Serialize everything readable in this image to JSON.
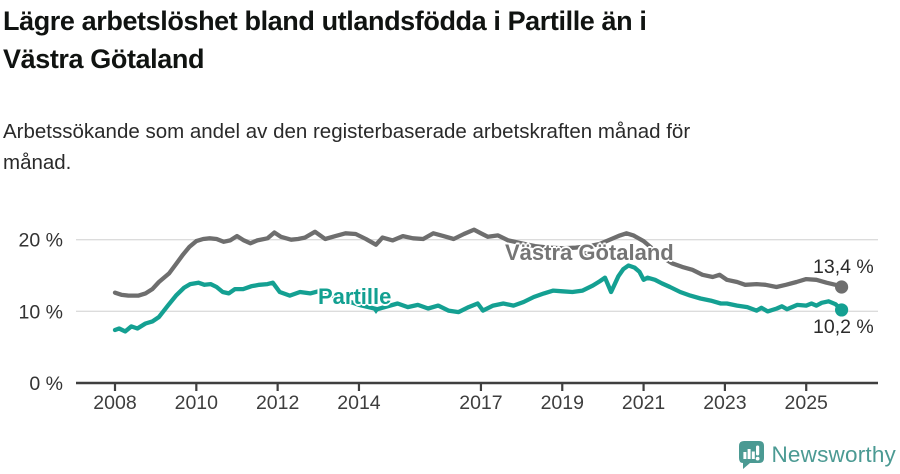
{
  "header": {
    "title_line1": "Lägre arbetslöshet bland utlandsfödda i Partille än i",
    "title_line2": "Västra Götaland",
    "subtitle_line1": "Arbetssökande som andel av den registerbaserade arbetskraften månad för",
    "subtitle_line2": "månad."
  },
  "footer": {
    "brand": "Newsworthy",
    "brand_color": "#4b9a93",
    "logo_icon": "newsworthy-speech-bubble-bar-chart-icon"
  },
  "chart_data": {
    "type": "line",
    "title": "Lägre arbetslöshet bland utlandsfödda i Partille än i Västra Götaland",
    "subtitle": "Arbetssökande som andel av den registerbaserade arbetskraften månad för månad.",
    "unit": "%",
    "grid": true,
    "legend_position": "inline-labels-on-lines",
    "x_axis": {
      "label": "",
      "ticks": [
        2008,
        2010,
        2012,
        2014,
        2017,
        2019,
        2021,
        2023,
        2025
      ],
      "range": [
        2007.05,
        2026.75
      ]
    },
    "y_axis": {
      "label": "",
      "ticks": [
        {
          "value": 0,
          "label": "0 %"
        },
        {
          "value": 10,
          "label": "10 %"
        },
        {
          "value": 20,
          "label": "20 %"
        }
      ],
      "range": [
        0,
        22.2
      ]
    },
    "series": [
      {
        "name": "Västra Götaland",
        "color": "#6e6e6e",
        "end_value": 13.4,
        "end_label": "13,4 %",
        "points": [
          [
            2008.0,
            12.6
          ],
          [
            2008.17,
            12.3
          ],
          [
            2008.33,
            12.2
          ],
          [
            2008.58,
            12.2
          ],
          [
            2008.75,
            12.5
          ],
          [
            2008.92,
            13.1
          ],
          [
            2009.08,
            14.1
          ],
          [
            2009.33,
            15.3
          ],
          [
            2009.5,
            16.6
          ],
          [
            2009.67,
            17.9
          ],
          [
            2009.83,
            19.0
          ],
          [
            2010.0,
            19.8
          ],
          [
            2010.17,
            20.1
          ],
          [
            2010.33,
            20.2
          ],
          [
            2010.5,
            20.1
          ],
          [
            2010.67,
            19.7
          ],
          [
            2010.83,
            19.9
          ],
          [
            2011.0,
            20.5
          ],
          [
            2011.17,
            19.9
          ],
          [
            2011.33,
            19.5
          ],
          [
            2011.5,
            19.9
          ],
          [
            2011.75,
            20.2
          ],
          [
            2011.92,
            21.0
          ],
          [
            2012.08,
            20.4
          ],
          [
            2012.33,
            20.0
          ],
          [
            2012.5,
            20.1
          ],
          [
            2012.67,
            20.3
          ],
          [
            2012.92,
            21.1
          ],
          [
            2013.17,
            20.1
          ],
          [
            2013.42,
            20.5
          ],
          [
            2013.67,
            20.9
          ],
          [
            2013.92,
            20.8
          ],
          [
            2014.17,
            20.1
          ],
          [
            2014.42,
            19.3
          ],
          [
            2014.58,
            20.3
          ],
          [
            2014.83,
            19.9
          ],
          [
            2015.08,
            20.5
          ],
          [
            2015.33,
            20.2
          ],
          [
            2015.58,
            20.1
          ],
          [
            2015.83,
            20.9
          ],
          [
            2016.08,
            20.5
          ],
          [
            2016.33,
            20.1
          ],
          [
            2016.58,
            20.8
          ],
          [
            2016.83,
            21.4
          ],
          [
            2017.0,
            20.9
          ],
          [
            2017.17,
            20.4
          ],
          [
            2017.42,
            20.6
          ],
          [
            2017.67,
            19.9
          ],
          [
            2018.0,
            19.5
          ],
          [
            2018.33,
            19.1
          ],
          [
            2018.67,
            18.9
          ],
          [
            2019.0,
            18.8
          ],
          [
            2019.33,
            18.9
          ],
          [
            2019.67,
            19.1
          ],
          [
            2019.92,
            19.4
          ],
          [
            2020.17,
            20.0
          ],
          [
            2020.42,
            20.6
          ],
          [
            2020.58,
            20.9
          ],
          [
            2020.75,
            20.6
          ],
          [
            2021.0,
            19.8
          ],
          [
            2021.25,
            18.6
          ],
          [
            2021.5,
            17.4
          ],
          [
            2021.7,
            16.7
          ],
          [
            2021.95,
            16.2
          ],
          [
            2022.2,
            15.8
          ],
          [
            2022.45,
            15.1
          ],
          [
            2022.7,
            14.8
          ],
          [
            2022.87,
            15.1
          ],
          [
            2023.05,
            14.4
          ],
          [
            2023.3,
            14.1
          ],
          [
            2023.5,
            13.7
          ],
          [
            2023.78,
            13.8
          ],
          [
            2024.0,
            13.7
          ],
          [
            2024.27,
            13.4
          ],
          [
            2024.5,
            13.7
          ],
          [
            2024.76,
            14.1
          ],
          [
            2025.0,
            14.5
          ],
          [
            2025.25,
            14.4
          ],
          [
            2025.5,
            14.0
          ],
          [
            2025.72,
            13.7
          ],
          [
            2025.87,
            13.4
          ]
        ]
      },
      {
        "name": "Partille",
        "color": "#14a092",
        "end_value": 10.2,
        "end_label": "10,2 %",
        "points": [
          [
            2008.0,
            7.4
          ],
          [
            2008.1,
            7.6
          ],
          [
            2008.25,
            7.2
          ],
          [
            2008.4,
            7.9
          ],
          [
            2008.55,
            7.6
          ],
          [
            2008.75,
            8.3
          ],
          [
            2008.92,
            8.6
          ],
          [
            2009.08,
            9.2
          ],
          [
            2009.3,
            10.8
          ],
          [
            2009.5,
            12.2
          ],
          [
            2009.7,
            13.3
          ],
          [
            2009.85,
            13.8
          ],
          [
            2010.05,
            14.0
          ],
          [
            2010.2,
            13.7
          ],
          [
            2010.35,
            13.8
          ],
          [
            2010.5,
            13.4
          ],
          [
            2010.65,
            12.7
          ],
          [
            2010.8,
            12.5
          ],
          [
            2010.95,
            13.1
          ],
          [
            2011.15,
            13.1
          ],
          [
            2011.35,
            13.5
          ],
          [
            2011.55,
            13.7
          ],
          [
            2011.75,
            13.8
          ],
          [
            2011.88,
            14.0
          ],
          [
            2012.05,
            12.7
          ],
          [
            2012.3,
            12.2
          ],
          [
            2012.55,
            12.7
          ],
          [
            2012.8,
            12.5
          ],
          [
            2013.0,
            12.8
          ],
          [
            2013.3,
            12.3
          ],
          [
            2013.65,
            11.6
          ],
          [
            2014.0,
            10.9
          ],
          [
            2014.45,
            10.3
          ],
          [
            2014.95,
            11.1
          ],
          [
            2015.2,
            10.6
          ],
          [
            2015.45,
            10.9
          ],
          [
            2015.7,
            10.4
          ],
          [
            2015.95,
            10.8
          ],
          [
            2016.2,
            10.1
          ],
          [
            2016.45,
            9.9
          ],
          [
            2016.7,
            10.6
          ],
          [
            2016.92,
            11.1
          ],
          [
            2017.05,
            10.1
          ],
          [
            2017.3,
            10.8
          ],
          [
            2017.55,
            11.1
          ],
          [
            2017.8,
            10.8
          ],
          [
            2018.05,
            11.3
          ],
          [
            2018.3,
            12.0
          ],
          [
            2018.55,
            12.5
          ],
          [
            2018.78,
            12.9
          ],
          [
            2019.0,
            12.8
          ],
          [
            2019.25,
            12.7
          ],
          [
            2019.5,
            12.9
          ],
          [
            2019.75,
            13.6
          ],
          [
            2019.92,
            14.2
          ],
          [
            2020.05,
            14.7
          ],
          [
            2020.2,
            12.7
          ],
          [
            2020.38,
            14.9
          ],
          [
            2020.5,
            15.9
          ],
          [
            2020.63,
            16.4
          ],
          [
            2020.78,
            16.1
          ],
          [
            2020.9,
            15.5
          ],
          [
            2021.0,
            14.4
          ],
          [
            2021.1,
            14.7
          ],
          [
            2021.28,
            14.4
          ],
          [
            2021.45,
            13.9
          ],
          [
            2021.65,
            13.4
          ],
          [
            2021.9,
            12.7
          ],
          [
            2022.15,
            12.2
          ],
          [
            2022.4,
            11.8
          ],
          [
            2022.65,
            11.5
          ],
          [
            2022.9,
            11.1
          ],
          [
            2023.05,
            11.1
          ],
          [
            2023.3,
            10.8
          ],
          [
            2023.55,
            10.6
          ],
          [
            2023.78,
            10.1
          ],
          [
            2023.9,
            10.5
          ],
          [
            2024.05,
            10.0
          ],
          [
            2024.28,
            10.4
          ],
          [
            2024.4,
            10.7
          ],
          [
            2024.53,
            10.3
          ],
          [
            2024.65,
            10.6
          ],
          [
            2024.78,
            10.9
          ],
          [
            2025.0,
            10.8
          ],
          [
            2025.13,
            11.1
          ],
          [
            2025.25,
            10.8
          ],
          [
            2025.38,
            11.2
          ],
          [
            2025.55,
            11.4
          ],
          [
            2025.72,
            11.0
          ],
          [
            2025.87,
            10.2
          ]
        ]
      }
    ]
  }
}
